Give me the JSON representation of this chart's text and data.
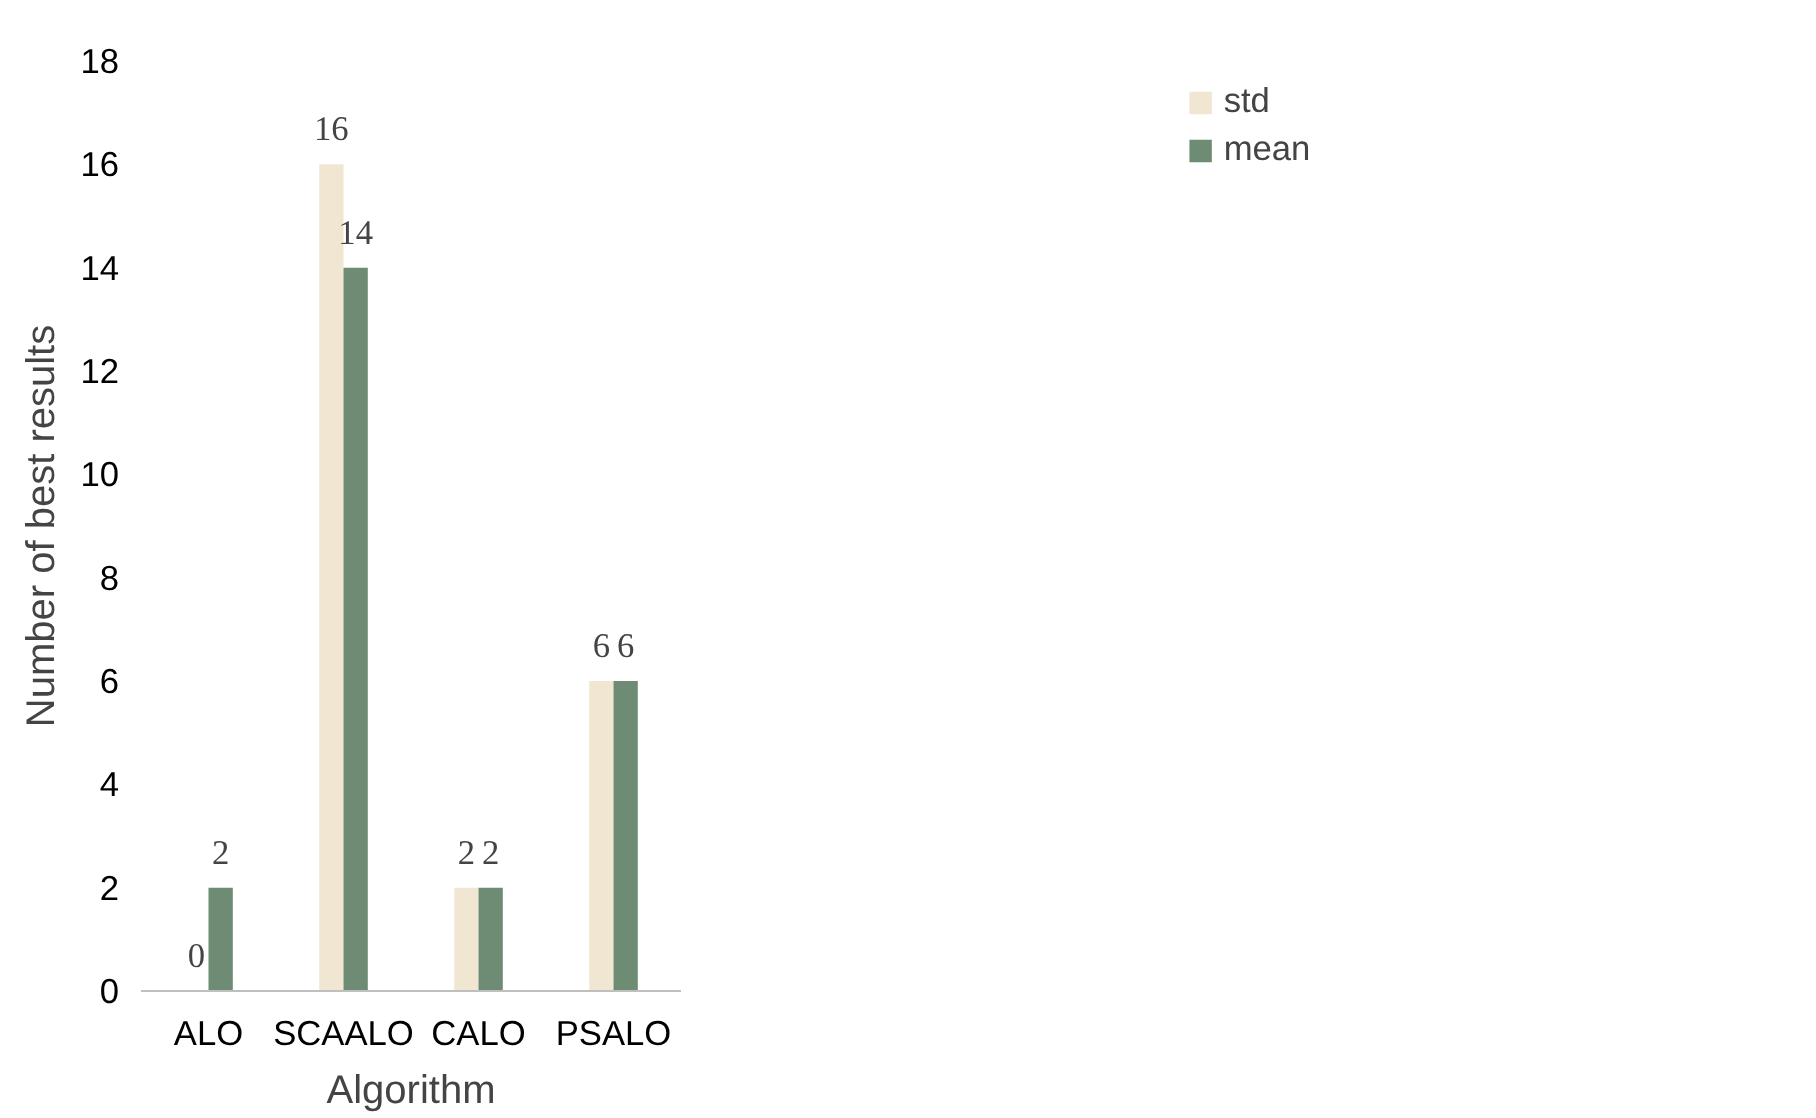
{
  "chart_data": {
    "type": "bar",
    "xlabel": "Algorithm",
    "ylabel": "Number of best results",
    "categories": [
      "ALO",
      "SCAALO",
      "CALO",
      "PSALO"
    ],
    "series": [
      {
        "name": "std",
        "color": "#f0e6d2",
        "values": [
          0,
          16,
          2,
          6
        ]
      },
      {
        "name": "mean",
        "color": "#6e8b74",
        "values": [
          2,
          14,
          2,
          6
        ]
      }
    ],
    "ylim": [
      0,
      18
    ],
    "yticks": [
      0,
      2,
      4,
      6,
      8,
      10,
      12,
      14,
      16,
      18
    ],
    "data_labels": true,
    "grid": false,
    "legend": "top right"
  }
}
